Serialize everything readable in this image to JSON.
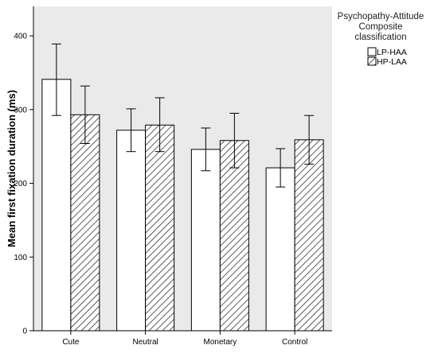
{
  "chart_data": {
    "type": "bar",
    "categories": [
      "Cute",
      "Neutral",
      "Monetary",
      "Control"
    ],
    "ylabel": "Mean first fixation duration (ms)",
    "xlabel": "",
    "ylim": [
      0,
      440
    ],
    "yticks": [
      0,
      100,
      200,
      300,
      400
    ],
    "grid": false,
    "plot_background": "#eaeaea",
    "legend": {
      "title_lines": [
        "Psychopathy-Attitude",
        "Composite",
        "classification"
      ],
      "placement": "right"
    },
    "series": [
      {
        "name": "LP-HAA",
        "fill": "white",
        "values": [
          341,
          272,
          246,
          221
        ],
        "error_low": [
          292,
          243,
          217,
          195
        ],
        "error_high": [
          389,
          301,
          275,
          247
        ]
      },
      {
        "name": "HP-LAA",
        "fill": "hatched",
        "values": [
          293,
          279,
          258,
          259
        ],
        "error_low": [
          254,
          243,
          221,
          226
        ],
        "error_high": [
          332,
          316,
          295,
          292
        ]
      }
    ]
  }
}
